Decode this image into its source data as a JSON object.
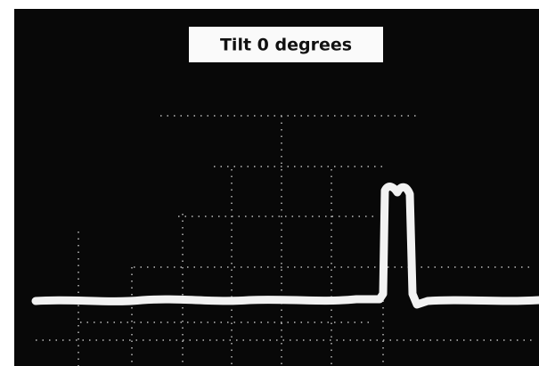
{
  "label": "Tilt 0 degrees"
}
